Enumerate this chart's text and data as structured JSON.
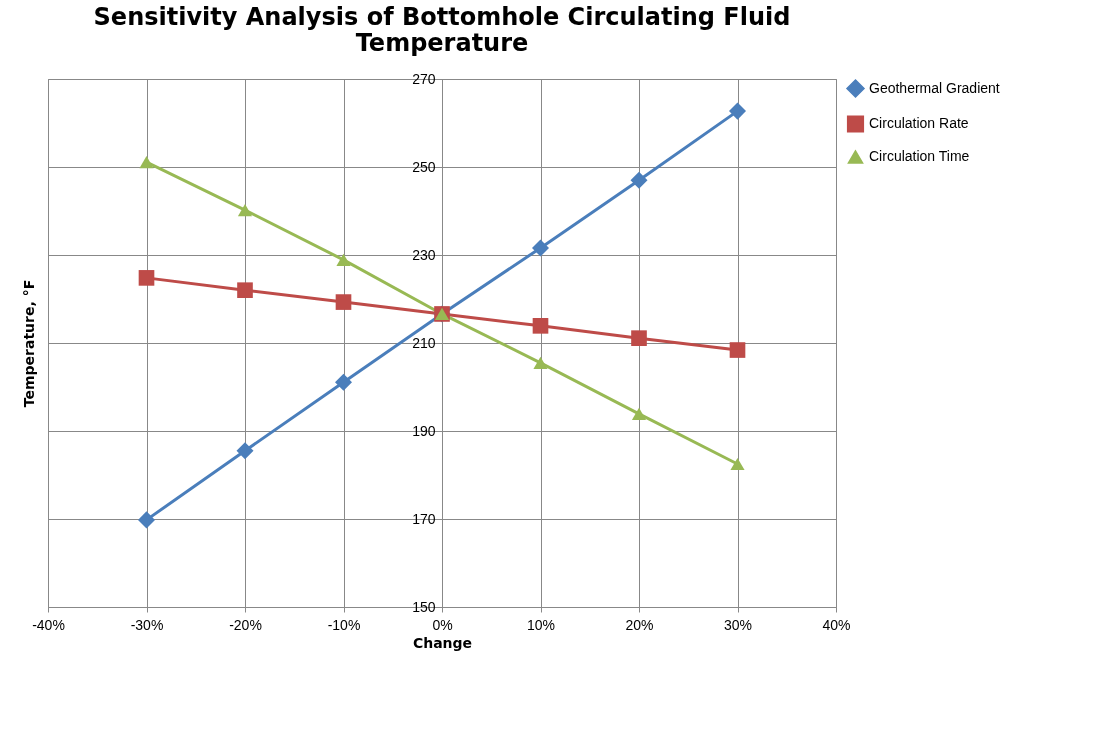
{
  "chart_data": {
    "type": "line",
    "title": "Sensitivity Analysis of Bottomhole Circulating Fluid Temperature",
    "xlabel": "Change",
    "ylabel": "Temperature, °F",
    "x": [
      -30,
      -20,
      -10,
      0,
      10,
      20,
      30
    ],
    "series": [
      {
        "name": "Geothermal Gradient",
        "color": "#4a7ebb",
        "marker": "diamond",
        "values": [
          169.8,
          185.5,
          201.1,
          216.6,
          231.6,
          247,
          262.7
        ]
      },
      {
        "name": "Circulation Rate",
        "color": "#be4b48",
        "marker": "square",
        "values": [
          224.8,
          222,
          219.3,
          216.6,
          213.9,
          211.1,
          208.4
        ]
      },
      {
        "name": "Circulation Time",
        "color": "#98b954",
        "marker": "triangle",
        "values": [
          251.1,
          240.2,
          228.9,
          216.6,
          205.5,
          193.9,
          182.5
        ]
      }
    ],
    "xlim": [
      -40,
      40
    ],
    "xticks": [
      {
        "value": -40,
        "label": "-40%"
      },
      {
        "value": -30,
        "label": "-30%"
      },
      {
        "value": -20,
        "label": "-20%"
      },
      {
        "value": -10,
        "label": "-10%"
      },
      {
        "value": 0,
        "label": "0%"
      },
      {
        "value": 10,
        "label": "10%"
      },
      {
        "value": 20,
        "label": "20%"
      },
      {
        "value": 30,
        "label": "30%"
      },
      {
        "value": 40,
        "label": "40%"
      }
    ],
    "ylim": [
      150,
      270
    ],
    "yticks": [
      150,
      170,
      190,
      210,
      230,
      250,
      270
    ],
    "grid": true,
    "legend": "right",
    "line_style": "solid"
  }
}
